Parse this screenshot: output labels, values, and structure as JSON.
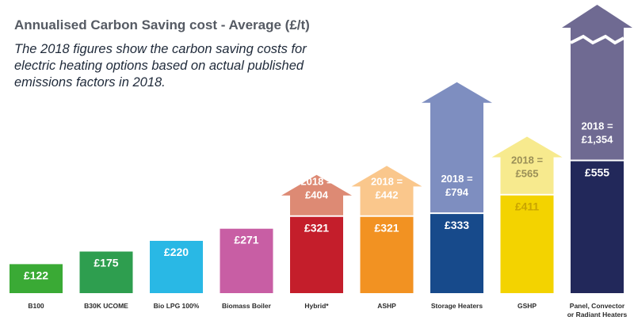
{
  "chart_data": {
    "type": "bar",
    "title": "Annualised Carbon Saving cost - Average (£/t)",
    "subtitle": "The 2018 figures show the carbon saving costs for electric heating options based on actual published emissions factors in 2018.",
    "categories": [
      "B100",
      "B30K UCOME",
      "Bio LPG 100%",
      "Biomass Boiler",
      "Hybrid*",
      "ASHP",
      "Storage Heaters",
      "GSHP",
      "Panel, Convector or Radiant Heaters"
    ],
    "series": [
      {
        "values": [
          122,
          175,
          220,
          271,
          321,
          321,
          333,
          411,
          555
        ],
        "labels": [
          "£122",
          "£175",
          "£220",
          "£271",
          "£321",
          "£321",
          "£333",
          "£411",
          "£555"
        ]
      },
      {
        "values": [
          null,
          null,
          null,
          null,
          404,
          442,
          794,
          565,
          1354
        ],
        "labels": [
          null,
          null,
          null,
          null,
          "2018 = £404",
          "2018 = £442",
          "2018 = £794",
          "2018 = £565",
          "2018 = £1,354"
        ]
      }
    ],
    "colors": [
      "#3aaa35",
      "#2e9e4f",
      "#29b8e5",
      "#c85ea4",
      "#c41e2b",
      "#f29222",
      "#174a8b",
      "#f3d300",
      "#22285a"
    ],
    "arrow_colors": [
      "",
      "",
      "",
      "",
      "#dd8a74",
      "#fac78c",
      "#7e8ec0",
      "#f7ea8e",
      "#6f6a92"
    ],
    "arrow_text_colors": [
      "",
      "",
      "",
      "",
      "#ffffff",
      "#ffffff",
      "#ffffff",
      "#9a8f57",
      "#ffffff"
    ],
    "label_text_colors": [
      "#ffffff",
      "#ffffff",
      "#ffffff",
      "#ffffff",
      "#ffffff",
      "#ffffff",
      "#ffffff",
      "#c9a400",
      "#ffffff"
    ],
    "broken_bar": "Panel, Convector or Radiant Heaters"
  }
}
